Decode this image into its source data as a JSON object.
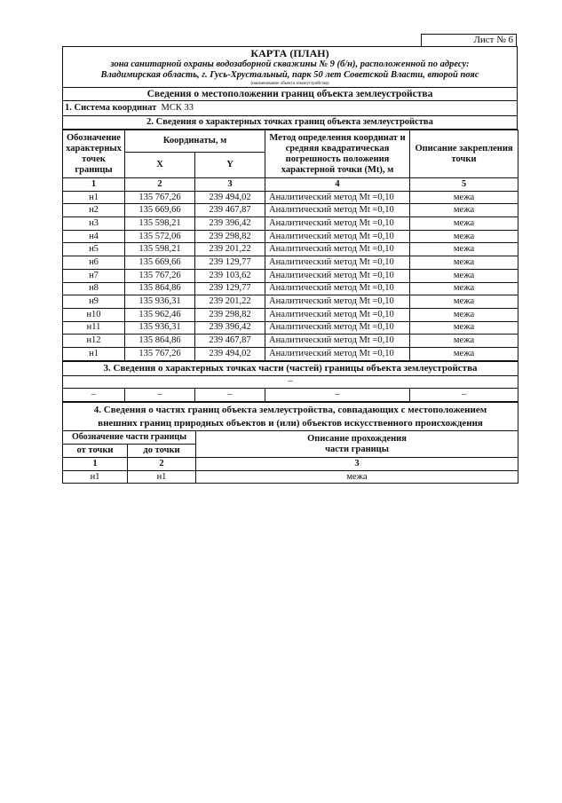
{
  "sheet_label": "Лист № 6",
  "header": {
    "title": "КАРТА (ПЛАН)",
    "subtitle_line1": "зона санитарной охраны водозаборной скважины № 9 (б/н), расположенной по адресу:",
    "subtitle_line2": "Владимирская область, г. Гусь-Хрустальный,  парк 50 лет Советской Власти, второй пояс",
    "caption": "(наименование объекта землеустройства)",
    "section_title": "Сведения о местоположении границ объекта землеустройства"
  },
  "section1": {
    "label": "1. Система координат",
    "value": "МСК 33"
  },
  "section2": {
    "title": "2. Сведения о характерных точках границ объекта землеустройства",
    "headers": {
      "point": "Обозначение характерных точек границы",
      "coords": "Координаты, м",
      "x": "X",
      "y": "Y",
      "method": "Метод определения координат и средняя квадратическая погрешность положения характерной точки (Mt), м",
      "description": "Описание закрепления точки"
    },
    "col_numbers": [
      "1",
      "2",
      "3",
      "4",
      "5"
    ],
    "rows": [
      [
        "н1",
        "135 767,26",
        "239 494,02",
        "Аналитический метод Mt =0,10",
        "межа"
      ],
      [
        "н2",
        "135 669,66",
        "239 467,87",
        "Аналитический метод Mt =0,10",
        "межа"
      ],
      [
        "н3",
        "135 598,21",
        "239 396,42",
        "Аналитический метод Mt =0,10",
        "межа"
      ],
      [
        "н4",
        "135 572,06",
        "239 298,82",
        "Аналитический метод Mt =0,10",
        "межа"
      ],
      [
        "н5",
        "135 598,21",
        "239 201,22",
        "Аналитический метод Mt =0,10",
        "межа"
      ],
      [
        "н6",
        "135 669,66",
        "239 129,77",
        "Аналитический метод Mt =0,10",
        "межа"
      ],
      [
        "н7",
        "135 767,26",
        "239 103,62",
        "Аналитический метод Mt =0,10",
        "межа"
      ],
      [
        "н8",
        "135 864,86",
        "239 129,77",
        "Аналитический метод Mt =0,10",
        "межа"
      ],
      [
        "н9",
        "135 936,31",
        "239 201,22",
        "Аналитический метод Mt =0,10",
        "межа"
      ],
      [
        "н10",
        "135 962,46",
        "239 298,82",
        "Аналитический метод Mt =0,10",
        "межа"
      ],
      [
        "н11",
        "135 936,31",
        "239 396,42",
        "Аналитический метод Mt =0,10",
        "межа"
      ],
      [
        "н12",
        "135 864,86",
        "239 467,87",
        "Аналитический метод Mt =0,10",
        "межа"
      ],
      [
        "н1",
        "135 767,26",
        "239 494,02",
        "Аналитический метод Mt =0,10",
        "межа"
      ]
    ]
  },
  "section3": {
    "title": "3. Сведения о характерных точках части (частей) границы объекта землеустройства",
    "dash_row": "–",
    "cells": [
      "–",
      "–",
      "–",
      "–",
      "–"
    ]
  },
  "section4": {
    "title_line1": "4. Сведения о частях границ объекта землеустройства,  совпадающих  с местоположением",
    "title_line2": "внешних  границ  природных  объектов  и (или) объектов искусственного происхождения",
    "headers": {
      "part": "Обозначение части границы",
      "from": "от точки",
      "to": "до точки",
      "description_line1": "Описание прохождения",
      "description_line2": "части границы"
    },
    "col_numbers": [
      "1",
      "2",
      "3"
    ],
    "rows": [
      [
        "н1",
        "н1",
        "межа"
      ]
    ]
  }
}
